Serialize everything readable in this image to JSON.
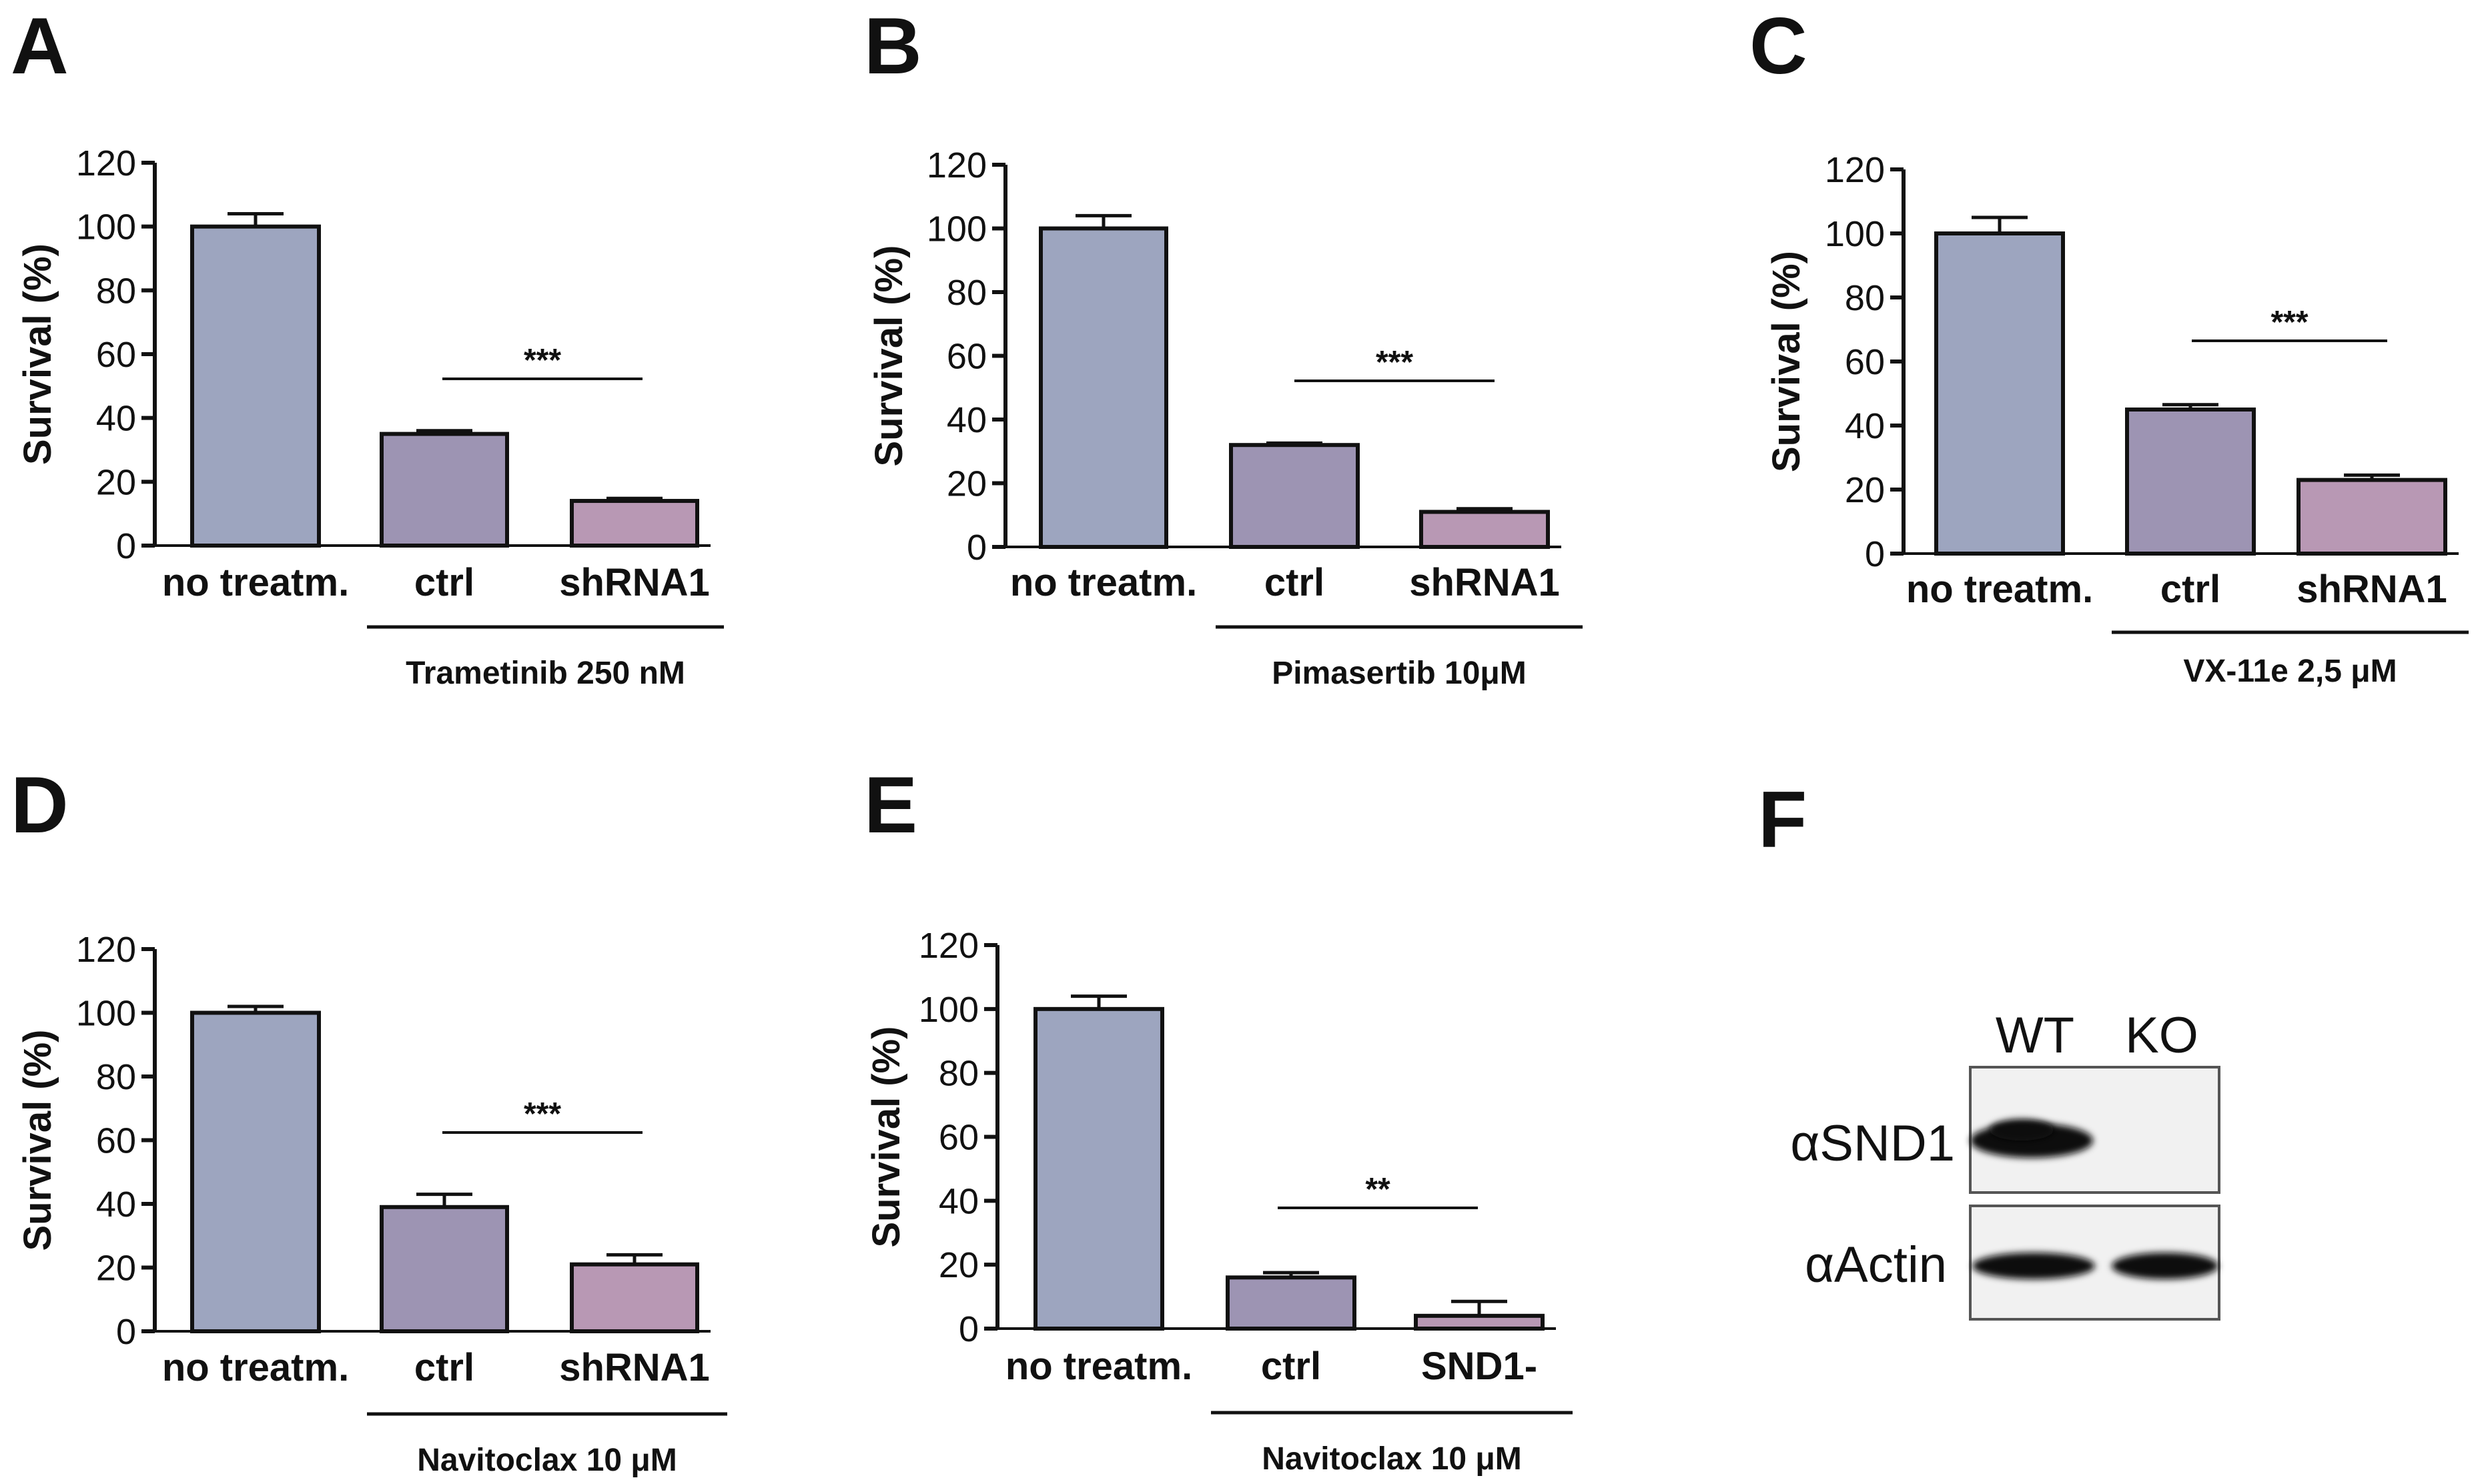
{
  "chart_data": [
    {
      "panel": "A",
      "type": "bar",
      "ylabel": "Survival (%)",
      "ylim": [
        0,
        120
      ],
      "yticks": [
        0,
        20,
        40,
        60,
        80,
        100,
        120
      ],
      "categories": [
        "no treatm.",
        "ctrl",
        "shRNA1"
      ],
      "values": [
        100,
        35,
        14
      ],
      "errors": [
        4,
        1,
        0.8
      ],
      "colors": [
        "#9da5bf",
        "#9d94b3",
        "#b898b4"
      ],
      "treatment": "Trametinib 250 nM",
      "significance": "***"
    },
    {
      "panel": "B",
      "type": "bar",
      "ylabel": "Survival (%)",
      "ylim": [
        0,
        120
      ],
      "yticks": [
        0,
        20,
        40,
        60,
        80,
        100,
        120
      ],
      "categories": [
        "no treatm.",
        "ctrl",
        "shRNA1"
      ],
      "values": [
        100,
        32,
        11
      ],
      "errors": [
        4,
        0.6,
        1
      ],
      "colors": [
        "#9da5bf",
        "#9d94b3",
        "#b898b4"
      ],
      "treatment": "Pimasertib 10μM",
      "significance": "***"
    },
    {
      "panel": "C",
      "type": "bar",
      "ylabel": "Survival (%)",
      "ylim": [
        0,
        120
      ],
      "yticks": [
        0,
        20,
        40,
        60,
        80,
        100,
        120
      ],
      "categories": [
        "no treatm.",
        "ctrl",
        "shRNA1"
      ],
      "values": [
        100,
        45,
        23
      ],
      "errors": [
        5,
        1.5,
        1.5
      ],
      "colors": [
        "#9da5bf",
        "#9d94b3",
        "#b898b4"
      ],
      "treatment": "VX-11e 2,5 μM",
      "significance": "***"
    },
    {
      "panel": "D",
      "type": "bar",
      "ylabel": "Survival (%)",
      "ylim": [
        0,
        120
      ],
      "yticks": [
        0,
        20,
        40,
        60,
        80,
        100,
        120
      ],
      "categories": [
        "no treatm.",
        "ctrl",
        "shRNA1"
      ],
      "values": [
        100,
        39,
        21
      ],
      "errors": [
        2,
        4,
        3
      ],
      "colors": [
        "#9da5bf",
        "#9d94b3",
        "#b898b4"
      ],
      "treatment": "Navitoclax 10 μM",
      "significance": "***"
    },
    {
      "panel": "E",
      "type": "bar",
      "ylabel": "Survival (%)",
      "ylim": [
        0,
        120
      ],
      "yticks": [
        0,
        20,
        40,
        60,
        80,
        100,
        120
      ],
      "categories": [
        "no treatm.",
        "ctrl",
        "SND1-"
      ],
      "values": [
        100,
        16,
        4
      ],
      "errors": [
        4,
        1.5,
        4.5
      ],
      "colors": [
        "#9da5bf",
        "#9d94b3",
        "#b898b4"
      ],
      "treatment": "Navitoclax 10 μM",
      "significance": "**"
    }
  ],
  "blot": {
    "panel": "F",
    "lanes": [
      "WT",
      "KO"
    ],
    "rows": [
      "αSND1",
      "αActin"
    ]
  }
}
